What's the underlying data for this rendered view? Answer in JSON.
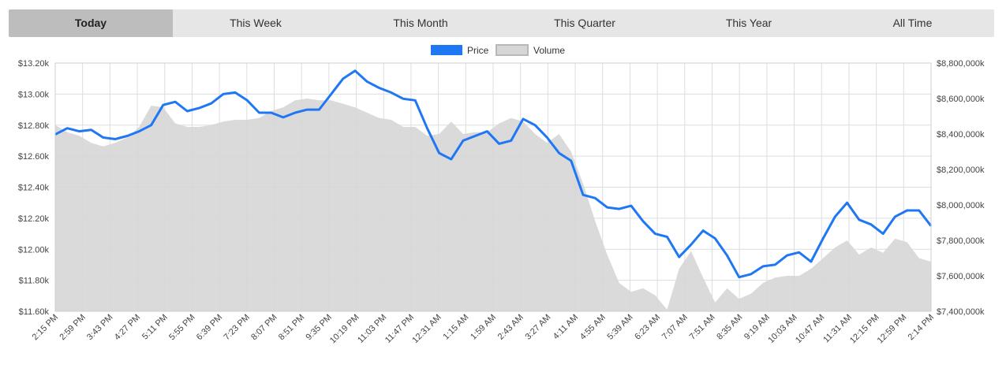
{
  "tabs": [
    {
      "label": "Today",
      "active": true
    },
    {
      "label": "This Week",
      "active": false
    },
    {
      "label": "This Month",
      "active": false
    },
    {
      "label": "This Quarter",
      "active": false
    },
    {
      "label": "This Year",
      "active": false
    },
    {
      "label": "All Time",
      "active": false
    }
  ],
  "colors": {
    "price": "#1f77f4",
    "volume": "#d6d6d6",
    "grid": "#dddddd",
    "tab_bg": "#e6e6e6",
    "tab_active": "#bdbdbd"
  },
  "chart_data": {
    "type": "line",
    "legend": {
      "placement": "top-center",
      "entries": [
        "Price",
        "Volume"
      ]
    },
    "grid": true,
    "x_tick_labels": [
      "2:15 PM",
      "2:59 PM",
      "3:43 PM",
      "4:27 PM",
      "5:11 PM",
      "5:55 PM",
      "6:39 PM",
      "7:23 PM",
      "8:07 PM",
      "8:51 PM",
      "9:35 PM",
      "10:19 PM",
      "11:03 PM",
      "11:47 PM",
      "12:31 AM",
      "1:15 AM",
      "1:59 AM",
      "2:43 AM",
      "3:27 AM",
      "4:11 AM",
      "4:55 AM",
      "5:39 AM",
      "6:23 AM",
      "7:07 AM",
      "7:51 AM",
      "8:35 AM",
      "9:19 AM",
      "10:03 AM",
      "10:47 AM",
      "11:31 AM",
      "12:15 PM",
      "12:59 PM",
      "2:14 PM"
    ],
    "y_left": {
      "ticks": [
        "$11.60k",
        "$11.80k",
        "$12.00k",
        "$12.20k",
        "$12.40k",
        "$12.60k",
        "$12.80k",
        "$13.00k",
        "$13.20k"
      ],
      "range": [
        11600,
        13200
      ]
    },
    "y_right": {
      "ticks": [
        "$7,400,000k",
        "$7,600,000k",
        "$7,800,000k",
        "$8,000,000k",
        "$8,200,000k",
        "$8,400,000k",
        "$8,600,000k",
        "$8,800,000k"
      ],
      "range": [
        7400000,
        8800000
      ]
    },
    "series": [
      {
        "name": "Price",
        "axis": "left",
        "type": "line",
        "values": [
          12740,
          12780,
          12760,
          12770,
          12720,
          12710,
          12730,
          12760,
          12800,
          12930,
          12950,
          12890,
          12910,
          12940,
          13000,
          13010,
          12960,
          12880,
          12880,
          12850,
          12880,
          12900,
          12900,
          13000,
          13100,
          13150,
          13080,
          13040,
          13010,
          12970,
          12960,
          12780,
          12620,
          12580,
          12700,
          12730,
          12760,
          12680,
          12700,
          12840,
          12800,
          12720,
          12620,
          12570,
          12350,
          12330,
          12270,
          12260,
          12280,
          12180,
          12100,
          12080,
          11950,
          12030,
          12120,
          12070,
          11960,
          11820,
          11840,
          11890,
          11900,
          11960,
          11980,
          11920,
          12070,
          12210,
          12300,
          12190,
          12160,
          12100,
          12210,
          12250,
          12250,
          12150
        ]
      },
      {
        "name": "Volume",
        "axis": "right",
        "type": "area",
        "values": [
          8450000,
          8410000,
          8390000,
          8350000,
          8330000,
          8350000,
          8380000,
          8440000,
          8560000,
          8550000,
          8460000,
          8440000,
          8440000,
          8450000,
          8470000,
          8480000,
          8480000,
          8490000,
          8530000,
          8550000,
          8590000,
          8600000,
          8590000,
          8590000,
          8570000,
          8550000,
          8520000,
          8490000,
          8480000,
          8440000,
          8440000,
          8390000,
          8400000,
          8470000,
          8400000,
          8410000,
          8410000,
          8460000,
          8490000,
          8470000,
          8400000,
          8350000,
          8400000,
          8300000,
          8120000,
          7910000,
          7720000,
          7560000,
          7510000,
          7530000,
          7490000,
          7410000,
          7640000,
          7740000,
          7590000,
          7450000,
          7530000,
          7470000,
          7500000,
          7560000,
          7590000,
          7600000,
          7600000,
          7640000,
          7700000,
          7760000,
          7800000,
          7720000,
          7760000,
          7730000,
          7810000,
          7790000,
          7700000,
          7680000
        ]
      }
    ]
  }
}
